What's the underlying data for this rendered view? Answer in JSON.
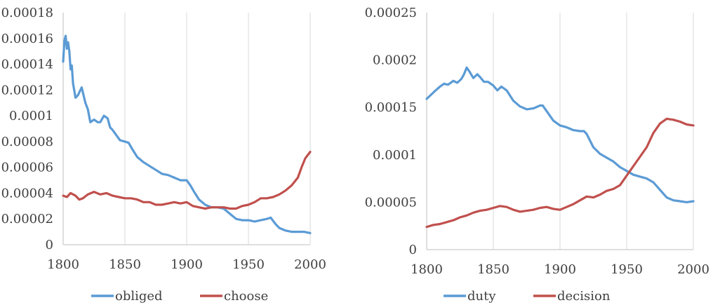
{
  "chart_data": [
    {
      "type": "line",
      "title": "",
      "xlabel": "",
      "ylabel": "",
      "xlim": [
        1800,
        2000
      ],
      "ylim": [
        0,
        0.00018
      ],
      "x_ticks": [
        1800,
        1850,
        1900,
        1950,
        2000
      ],
      "y_ticks": [
        0,
        2e-05,
        4e-05,
        6e-05,
        8e-05,
        0.0001,
        0.00012,
        0.00014,
        0.00016,
        0.00018
      ],
      "x_tick_labels": [
        "1800",
        "1850",
        "1900",
        "1950",
        "2000"
      ],
      "y_tick_labels": [
        "0",
        "0.00002",
        "0.00004",
        "0.00006",
        "0.00008",
        "0.0001",
        "0.00012",
        "0.00014",
        "0.00016",
        "0.00018"
      ],
      "grid": "vertical",
      "legend_position": "bottom",
      "series": [
        {
          "name": "obliged",
          "color": "#5B9BD5",
          "x": [
            1800,
            1801,
            1802,
            1803,
            1804,
            1805,
            1806,
            1807,
            1808,
            1810,
            1812,
            1815,
            1818,
            1820,
            1822,
            1825,
            1828,
            1830,
            1833,
            1836,
            1838,
            1840,
            1843,
            1846,
            1850,
            1853,
            1856,
            1860,
            1865,
            1870,
            1875,
            1880,
            1885,
            1890,
            1895,
            1900,
            1903,
            1906,
            1910,
            1915,
            1920,
            1925,
            1930,
            1935,
            1940,
            1945,
            1950,
            1955,
            1960,
            1965,
            1968,
            1972,
            1975,
            1980,
            1985,
            1990,
            1995,
            2000
          ],
          "values": [
            0.000142,
            0.000158,
            0.000162,
            0.000152,
            0.000157,
            0.00015,
            0.000136,
            0.000139,
            0.000125,
            0.000114,
            0.000116,
            0.000122,
            0.00011,
            0.000105,
            9.5e-05,
            9.7e-05,
            9.5e-05,
            9.5e-05,
            0.0001,
            9.8e-05,
            9.1e-05,
            8.9e-05,
            8.5e-05,
            8.1e-05,
            8e-05,
            7.9e-05,
            7.4e-05,
            6.8e-05,
            6.4e-05,
            6.1e-05,
            5.8e-05,
            5.5e-05,
            5.4e-05,
            5.2e-05,
            5e-05,
            5e-05,
            4.6e-05,
            4.1e-05,
            3.5e-05,
            3.1e-05,
            2.9e-05,
            2.9e-05,
            2.8e-05,
            2.4e-05,
            2e-05,
            1.9e-05,
            1.9e-05,
            1.8e-05,
            1.9e-05,
            2e-05,
            2.1e-05,
            1.6e-05,
            1.3e-05,
            1.1e-05,
            1e-05,
            1e-05,
            1e-05,
            9e-06
          ]
        },
        {
          "name": "choose",
          "color": "#C0504D",
          "x": [
            1800,
            1803,
            1806,
            1810,
            1813,
            1816,
            1820,
            1825,
            1830,
            1835,
            1840,
            1845,
            1850,
            1855,
            1860,
            1865,
            1870,
            1875,
            1880,
            1885,
            1890,
            1895,
            1900,
            1905,
            1910,
            1915,
            1920,
            1925,
            1930,
            1935,
            1940,
            1945,
            1950,
            1955,
            1960,
            1965,
            1970,
            1975,
            1980,
            1985,
            1990,
            1993,
            1996,
            2000
          ],
          "values": [
            3.8e-05,
            3.7e-05,
            4e-05,
            3.8e-05,
            3.5e-05,
            3.6e-05,
            3.9e-05,
            4.1e-05,
            3.9e-05,
            4e-05,
            3.8e-05,
            3.7e-05,
            3.6e-05,
            3.6e-05,
            3.5e-05,
            3.3e-05,
            3.3e-05,
            3.1e-05,
            3.1e-05,
            3.2e-05,
            3.3e-05,
            3.2e-05,
            3.3e-05,
            3e-05,
            2.9e-05,
            2.8e-05,
            2.9e-05,
            2.9e-05,
            2.9e-05,
            2.8e-05,
            2.8e-05,
            3e-05,
            3.1e-05,
            3.3e-05,
            3.6e-05,
            3.6e-05,
            3.7e-05,
            3.9e-05,
            4.2e-05,
            4.6e-05,
            5.2e-05,
            6e-05,
            6.7e-05,
            7.2e-05
          ]
        }
      ]
    },
    {
      "type": "line",
      "title": "",
      "xlabel": "",
      "ylabel": "",
      "xlim": [
        1800,
        2000
      ],
      "ylim": [
        0,
        0.00025
      ],
      "x_ticks": [
        1800,
        1850,
        1900,
        1950,
        2000
      ],
      "y_ticks": [
        0,
        5e-05,
        0.0001,
        0.00015,
        0.0002,
        0.00025
      ],
      "x_tick_labels": [
        "1800",
        "1850",
        "1900",
        "1950",
        "2000"
      ],
      "y_tick_labels": [
        "0",
        "0.00005",
        "0.0001",
        "0.00015",
        "0.0002",
        "0.00025"
      ],
      "grid": "vertical",
      "legend_position": "bottom",
      "series": [
        {
          "name": "duty",
          "color": "#5B9BD5",
          "x": [
            1800,
            1803,
            1806,
            1810,
            1813,
            1816,
            1820,
            1823,
            1826,
            1828,
            1830,
            1832,
            1835,
            1838,
            1840,
            1843,
            1846,
            1850,
            1853,
            1856,
            1860,
            1865,
            1870,
            1875,
            1880,
            1885,
            1887,
            1890,
            1895,
            1900,
            1905,
            1910,
            1915,
            1918,
            1920,
            1925,
            1930,
            1935,
            1940,
            1945,
            1950,
            1955,
            1960,
            1965,
            1970,
            1975,
            1980,
            1985,
            1990,
            1995,
            2000
          ],
          "values": [
            0.000159,
            0.000163,
            0.000167,
            0.000172,
            0.000175,
            0.000174,
            0.000178,
            0.000176,
            0.00018,
            0.000185,
            0.000192,
            0.000188,
            0.000181,
            0.000185,
            0.000182,
            0.000177,
            0.000177,
            0.000173,
            0.000168,
            0.000172,
            0.000168,
            0.000157,
            0.000151,
            0.000148,
            0.000149,
            0.000152,
            0.000152,
            0.000146,
            0.000136,
            0.000131,
            0.000129,
            0.000126,
            0.000125,
            0.000125,
            0.000122,
            0.000108,
            0.000101,
            9.7e-05,
            9.3e-05,
            8.7e-05,
            8.3e-05,
            7.9e-05,
            7.7e-05,
            7.5e-05,
            7.1e-05,
            6.3e-05,
            5.5e-05,
            5.2e-05,
            5.1e-05,
            5e-05,
            5.1e-05
          ]
        },
        {
          "name": "decision",
          "color": "#C0504D",
          "x": [
            1800,
            1805,
            1810,
            1815,
            1820,
            1825,
            1830,
            1835,
            1840,
            1845,
            1850,
            1855,
            1860,
            1865,
            1870,
            1875,
            1880,
            1885,
            1890,
            1895,
            1900,
            1905,
            1910,
            1915,
            1920,
            1925,
            1930,
            1935,
            1940,
            1945,
            1950,
            1955,
            1960,
            1965,
            1970,
            1975,
            1980,
            1985,
            1990,
            1995,
            2000
          ],
          "values": [
            2.4e-05,
            2.6e-05,
            2.7e-05,
            2.9e-05,
            3.1e-05,
            3.4e-05,
            3.6e-05,
            3.9e-05,
            4.1e-05,
            4.2e-05,
            4.4e-05,
            4.6e-05,
            4.5e-05,
            4.2e-05,
            4e-05,
            4.1e-05,
            4.2e-05,
            4.4e-05,
            4.5e-05,
            4.3e-05,
            4.2e-05,
            4.5e-05,
            4.8e-05,
            5.2e-05,
            5.6e-05,
            5.5e-05,
            5.8e-05,
            6.2e-05,
            6.4e-05,
            6.8e-05,
            7.8e-05,
            8.8e-05,
            9.8e-05,
            0.000108,
            0.000123,
            0.000133,
            0.000138,
            0.000137,
            0.000135,
            0.000132,
            0.000131
          ]
        }
      ]
    }
  ]
}
